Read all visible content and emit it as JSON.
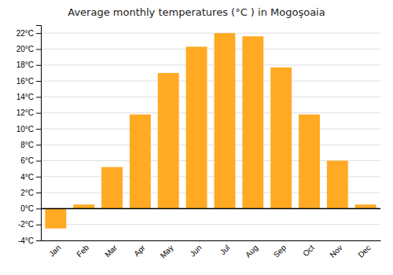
{
  "chart_data": {
    "type": "bar",
    "title": "Average monthly temperatures (°C ) in Mogoşoaia",
    "categories": [
      "Jan",
      "Feb",
      "Mar",
      "Apr",
      "May",
      "Jun",
      "Jul",
      "Aug",
      "Sep",
      "Oct",
      "Nov",
      "Dec"
    ],
    "values": [
      -2.5,
      0.5,
      5.2,
      11.8,
      17.0,
      20.3,
      22.0,
      21.6,
      17.7,
      11.8,
      6.0,
      0.5
    ],
    "color": "#FFAA22",
    "ylim": [
      -4,
      23
    ],
    "yticks": [
      {
        "value": -4,
        "label": "-4°C"
      },
      {
        "value": -2,
        "label": "-2°C"
      },
      {
        "value": 0,
        "label": "0°C"
      },
      {
        "value": 2,
        "label": "2°C"
      },
      {
        "value": 4,
        "label": "4°C"
      },
      {
        "value": 6,
        "label": "6°C"
      },
      {
        "value": 8,
        "label": "8°C"
      },
      {
        "value": 10,
        "label": "10°C"
      },
      {
        "value": 12,
        "label": "12°C"
      },
      {
        "value": 14,
        "label": "14°C"
      },
      {
        "value": 16,
        "label": "16°C"
      },
      {
        "value": 18,
        "label": "18°C"
      },
      {
        "value": 20,
        "label": "20°C"
      },
      {
        "value": 22,
        "label": "22°C"
      }
    ],
    "grid": true
  }
}
